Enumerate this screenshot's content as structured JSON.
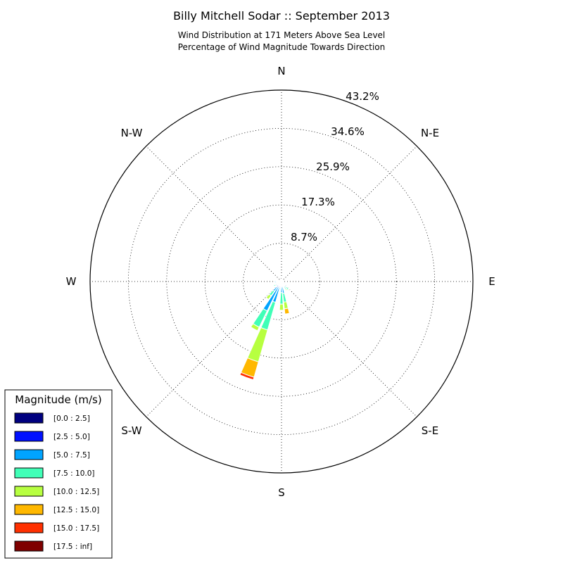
{
  "chart_data": {
    "type": "windrose",
    "title": "Billy Mitchell Sodar :: September 2013",
    "subtitle_lines": [
      "Wind Distribution at 171 Meters Above Sea Level",
      "Percentage of Wind Magnitude Towards Direction"
    ],
    "direction_labels": [
      "N",
      "N-E",
      "E",
      "S-E",
      "S",
      "S-W",
      "W",
      "N-W"
    ],
    "radial_ticks": [
      "8.7%",
      "17.3%",
      "25.9%",
      "34.6%",
      "43.2%"
    ],
    "radial_tick_values": [
      8.65,
      17.3,
      25.95,
      34.6,
      43.25
    ],
    "rmax": 43.25,
    "grid": true,
    "legend": {
      "title": "Magnitude (m/s)",
      "location": "lower-left",
      "bins": [
        {
          "label": "[0.0 : 2.5]",
          "color": "#00007f"
        },
        {
          "label": "[2.5 : 5.0]",
          "color": "#0010ff"
        },
        {
          "label": "[5.0 : 7.5]",
          "color": "#00a4ff"
        },
        {
          "label": "[7.5 : 10.0]",
          "color": "#40ffb7"
        },
        {
          "label": "[10.0 : 12.5]",
          "color": "#b7ff40"
        },
        {
          "label": "[12.5 : 15.0]",
          "color": "#ffb800"
        },
        {
          "label": "[15.0 : 17.5]",
          "color": "#ff3000"
        },
        {
          "label": "[17.5 : inf]",
          "color": "#7f0000"
        }
      ]
    },
    "sector_width_deg": 8,
    "series": [
      {
        "direction_deg": 0,
        "cumulative_pct": [
          0.2,
          0.4,
          0.4,
          0.4,
          0.4,
          0.4,
          0.4,
          0.4
        ]
      },
      {
        "direction_deg": 10,
        "cumulative_pct": [
          0.2,
          0.6,
          1.3,
          1.3,
          1.3,
          1.3,
          1.3,
          1.3
        ]
      },
      {
        "direction_deg": 20,
        "cumulative_pct": [
          0.2,
          0.4,
          0.4,
          0.4,
          0.4,
          0.4,
          0.4,
          0.4
        ]
      },
      {
        "direction_deg": 90,
        "cumulative_pct": [
          0.3,
          0.5,
          0.5,
          0.5,
          0.5,
          0.5,
          0.5,
          0.5
        ]
      },
      {
        "direction_deg": 120,
        "cumulative_pct": [
          0.3,
          0.8,
          1.3,
          1.3,
          1.3,
          1.3,
          1.3,
          1.3
        ]
      },
      {
        "direction_deg": 140,
        "cumulative_pct": [
          0.3,
          0.8,
          1.6,
          2.4,
          2.6,
          2.6,
          2.6,
          2.6
        ]
      },
      {
        "direction_deg": 150,
        "cumulative_pct": [
          0.3,
          0.6,
          0.8,
          2.0,
          2.3,
          2.3,
          2.3,
          2.3
        ]
      },
      {
        "direction_deg": 170,
        "cumulative_pct": [
          0.4,
          1.1,
          2.7,
          4.7,
          6.2,
          7.4,
          7.4,
          7.4
        ]
      },
      {
        "direction_deg": 180,
        "cumulative_pct": [
          0.3,
          0.8,
          2.5,
          5.1,
          6.5,
          6.6,
          6.6,
          6.6
        ]
      },
      {
        "direction_deg": 200,
        "cumulative_pct": [
          0.4,
          1.5,
          4.9,
          11.4,
          18.9,
          22.5,
          23.1,
          23.1
        ]
      },
      {
        "direction_deg": 210,
        "cumulative_pct": [
          0.4,
          1.3,
          7.4,
          11.5,
          12.4,
          12.5,
          12.5,
          12.5
        ]
      },
      {
        "direction_deg": 220,
        "cumulative_pct": [
          0.6,
          1.6,
          2.7,
          4.0,
          5.0,
          5.0,
          5.0,
          5.0
        ]
      },
      {
        "direction_deg": 240,
        "cumulative_pct": [
          0.3,
          0.8,
          1.5,
          2.0,
          2.0,
          2.0,
          2.0,
          2.0
        ]
      },
      {
        "direction_deg": 260,
        "cumulative_pct": [
          0.3,
          0.8,
          1.5,
          1.5,
          1.5,
          1.5,
          1.5,
          1.5
        ]
      },
      {
        "direction_deg": 270,
        "cumulative_pct": [
          0.4,
          1.2,
          1.6,
          1.6,
          1.6,
          1.6,
          1.6,
          1.6
        ]
      },
      {
        "direction_deg": 290,
        "cumulative_pct": [
          0.2,
          0.4,
          0.4,
          0.4,
          0.4,
          0.4,
          0.4,
          0.4
        ]
      },
      {
        "direction_deg": 340,
        "cumulative_pct": [
          0.2,
          0.4,
          0.4,
          0.4,
          0.4,
          0.4,
          0.4,
          0.4
        ]
      }
    ]
  }
}
